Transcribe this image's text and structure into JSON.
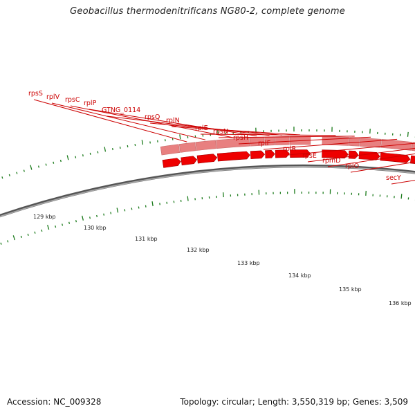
{
  "title": "Geobacillus thermodenitrificans NG80-2, complete genome",
  "footer": {
    "accession": "Accession: NC_009328",
    "summary": "Topology: circular; Length: 3,550,319 bp; Genes: 3,509"
  },
  "colors": {
    "gene_label": "#cc0000",
    "gene_arrow": "#ee0000",
    "gene_bar": "#e88080",
    "secY_bar": "#99ee33",
    "tick": "#1a7a1a",
    "backbone": "#777777"
  },
  "gene_labels": [
    "rpsS",
    "rplV",
    "rpsC",
    "rplP",
    "GTNG_0114",
    "rpsQ",
    "rplN",
    "rplE",
    "rpsN",
    "rpsH",
    "rplF",
    "rplR",
    "rpsE",
    "rpmD",
    "rplO",
    "secY"
  ],
  "kbp_labels": [
    "129 kbp",
    "130 kbp",
    "131 kbp",
    "132 kbp",
    "133 kbp",
    "134 kbp",
    "135 kbp",
    "136 kbp"
  ]
}
